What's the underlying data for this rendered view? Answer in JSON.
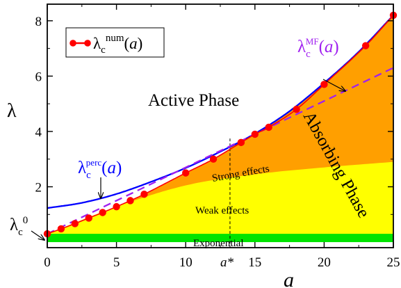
{
  "chart_data": {
    "type": "line",
    "xlim": [
      0,
      25
    ],
    "ylim": [
      -0.2,
      8.6
    ],
    "x_ticks": [
      0,
      5,
      10,
      15,
      20,
      25
    ],
    "x_tick_labels": [
      "0",
      "5",
      "10",
      "15",
      "20",
      "25"
    ],
    "y_ticks": [
      2,
      4,
      6,
      8
    ],
    "y_tick_labels": [
      "2",
      "4",
      "6",
      "8"
    ],
    "xlabel": "a",
    "ylabel": "λ",
    "legend_position": "top-left",
    "series": [
      {
        "name": "λ_c^num(a)",
        "style": "line-markers",
        "color": "#ff0000",
        "x": [
          0,
          1,
          2,
          3,
          4,
          5,
          6,
          7,
          10,
          12,
          14,
          15,
          16,
          18,
          20,
          23,
          25
        ],
        "y": [
          0.3,
          0.48,
          0.67,
          0.87,
          1.07,
          1.28,
          1.5,
          1.73,
          2.5,
          3.0,
          3.6,
          3.9,
          4.15,
          4.8,
          5.7,
          7.1,
          8.2
        ]
      },
      {
        "name": "λ_c^perc(a)",
        "style": "solid",
        "color": "#0000ff",
        "x": [
          0,
          2.5,
          5,
          7.5,
          10,
          12.5,
          15,
          17.5,
          20,
          22.5,
          25
        ],
        "y": [
          1.23,
          1.42,
          1.74,
          2.18,
          2.68,
          3.27,
          3.92,
          4.73,
          5.75,
          6.88,
          8.2
        ]
      },
      {
        "name": "λ_c^MF(a)",
        "style": "dashed",
        "color": "#a020f0",
        "x": [
          0,
          12.5,
          25
        ],
        "y": [
          0.3,
          3.33,
          6.3
        ]
      }
    ],
    "regions": [
      {
        "label": "Exponential",
        "color": "#00e400",
        "y_range": [
          0,
          0.3
        ]
      },
      {
        "label": "Weak effects",
        "color": "#ffff00"
      },
      {
        "label": "Strong effects",
        "color": "#ff9f00"
      },
      {
        "label": "Active Phase"
      },
      {
        "label": "Absorbing Phase"
      }
    ],
    "yellow_upper_boundary": {
      "x": [
        0,
        5,
        10,
        15,
        20,
        25
      ],
      "y": [
        0.3,
        1.28,
        2.05,
        2.45,
        2.7,
        2.9
      ]
    },
    "vertical_marker": {
      "x": 13.2,
      "label": "a*",
      "style": "dashed"
    },
    "annotations": {
      "active_phase": "Active Phase",
      "absorbing_phase": "Absorbing Phase",
      "strong_effects": "Strong effects",
      "weak_effects": "Weak effects",
      "exponential": "Exponential",
      "lambda_c0": "λc0"
    }
  }
}
